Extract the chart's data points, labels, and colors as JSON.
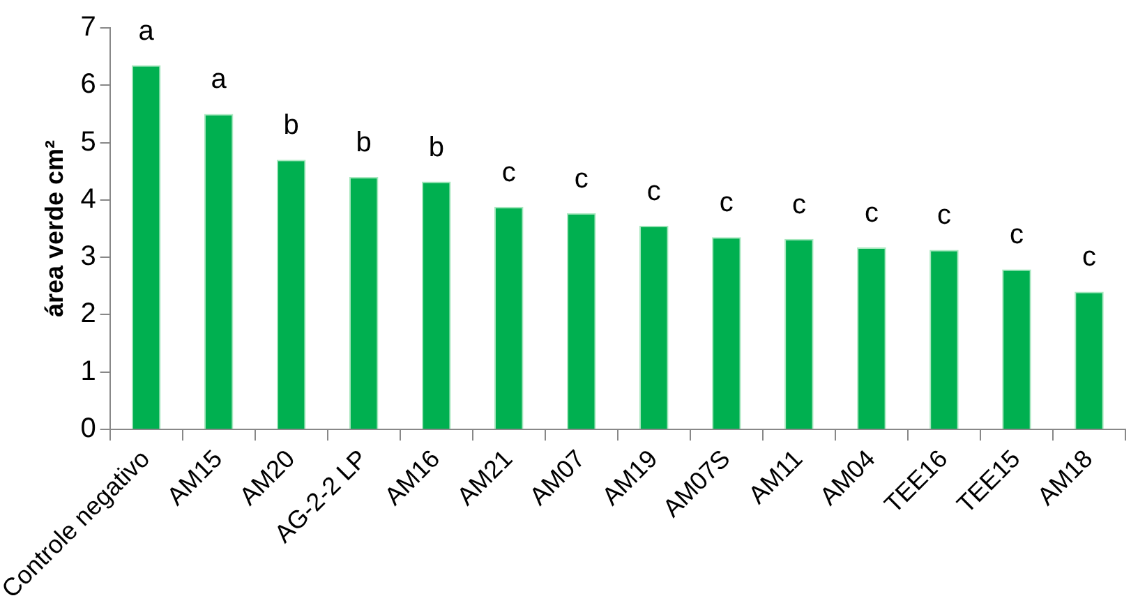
{
  "chart_data": {
    "type": "bar",
    "ylabel": "área verde cm²",
    "categories": [
      "Controle negativo",
      "AM15",
      "AM20",
      "AG-2-2 LP",
      "AM16",
      "AM21",
      "AM07",
      "AM19",
      "AM07S",
      "AM11",
      "AM04",
      "TEE16",
      "TEE15",
      "AM18"
    ],
    "values": [
      6.35,
      5.5,
      4.7,
      4.4,
      4.32,
      3.88,
      3.77,
      3.55,
      3.35,
      3.32,
      3.17,
      3.13,
      2.79,
      2.4
    ],
    "color": "#00b050",
    "ylim": [
      0,
      7
    ],
    "yticks": [
      0,
      1,
      2,
      3,
      4,
      5,
      6,
      7
    ],
    "legend": false,
    "annotations": [
      {
        "text": "a",
        "x": "Controle negativo",
        "y": 6.35
      },
      {
        "text": "a",
        "x": "AM15",
        "y": 5.5
      },
      {
        "text": "b",
        "x": "AM20",
        "y": 4.7
      },
      {
        "text": "b",
        "x": "AG-2-2 LP",
        "y": 4.4
      },
      {
        "text": "b",
        "x": "AM16",
        "y": 4.32
      },
      {
        "text": "c",
        "x": "AM21",
        "y": 3.88
      },
      {
        "text": "c",
        "x": "AM07",
        "y": 3.77
      },
      {
        "text": "c",
        "x": "AM19",
        "y": 3.55
      },
      {
        "text": "c",
        "x": "AM07S",
        "y": 3.35
      },
      {
        "text": "c",
        "x": "AM11",
        "y": 3.32
      },
      {
        "text": "c",
        "x": "AM04",
        "y": 3.17
      },
      {
        "text": "c",
        "x": "TEE16",
        "y": 3.13
      },
      {
        "text": "c",
        "x": "TEE15",
        "y": 2.79
      },
      {
        "text": "c",
        "x": "AM18",
        "y": 2.4
      }
    ]
  }
}
